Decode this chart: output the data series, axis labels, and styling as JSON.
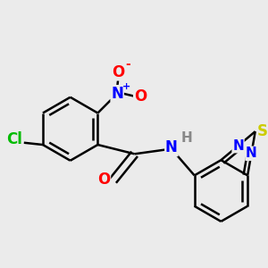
{
  "bg_color": "#ebebeb",
  "bond_color": "#000000",
  "bond_width": 1.8,
  "atom_colors": {
    "O": "#ff0000",
    "N": "#0000ff",
    "Cl": "#00bb00",
    "S": "#cccc00",
    "H": "#888888",
    "C": "#000000"
  },
  "font_size": 12,
  "dbo_ring": 0.1,
  "shrink": 0.09
}
